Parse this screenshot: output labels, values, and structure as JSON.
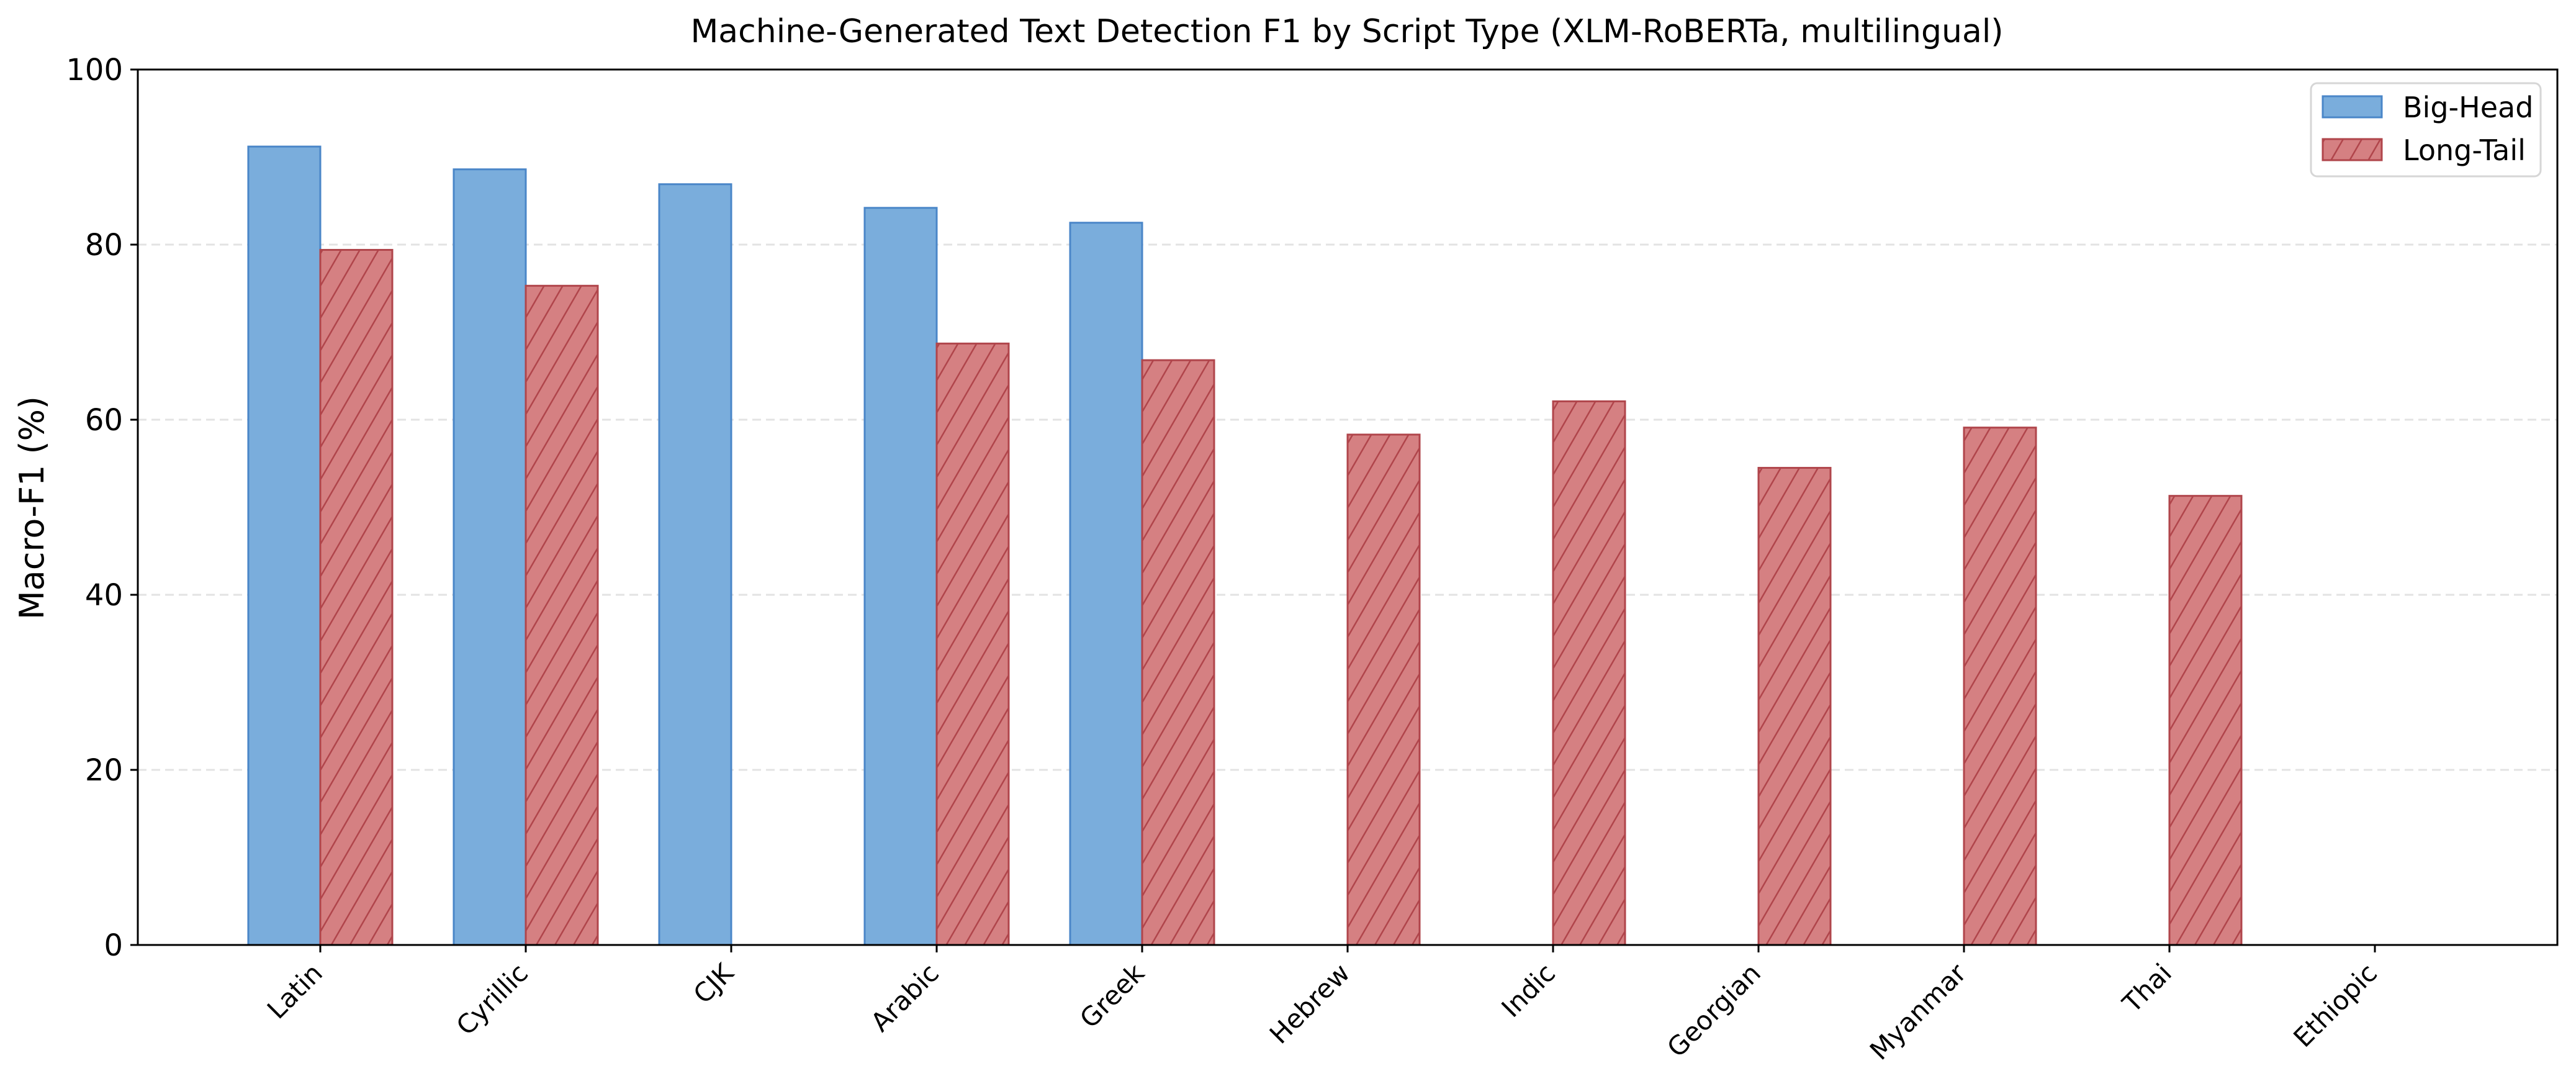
{
  "chart_data": {
    "type": "bar",
    "title": "Machine-Generated Text Detection F1 by Script Type (XLM-RoBERTa, multilingual)",
    "xlabel": "",
    "ylabel": "Macro-F1 (%)",
    "ylim": [
      0,
      100
    ],
    "yticks": [
      0,
      20,
      40,
      60,
      80,
      100
    ],
    "grid": "y dashed",
    "legend_position": "upper right",
    "categories": [
      "Latin",
      "Cyrillic",
      "CJK",
      "Arabic",
      "Greek",
      "Hebrew",
      "Indic",
      "Georgian",
      "Myanmar",
      "Thai",
      "Ethiopic"
    ],
    "series": [
      {
        "name": "Big-Head",
        "color": "#7aaddc",
        "edge_color": "#4a86c8",
        "hatch": "none",
        "values": [
          91.2,
          88.6,
          86.9,
          84.2,
          82.5,
          null,
          null,
          null,
          null,
          null,
          null
        ]
      },
      {
        "name": "Long-Tail",
        "color": "#d58082",
        "edge_color": "#b0454b",
        "hatch": "diagonal",
        "values": [
          79.4,
          75.3,
          null,
          68.7,
          66.8,
          58.3,
          62.1,
          54.5,
          59.1,
          51.3,
          null
        ]
      }
    ]
  }
}
